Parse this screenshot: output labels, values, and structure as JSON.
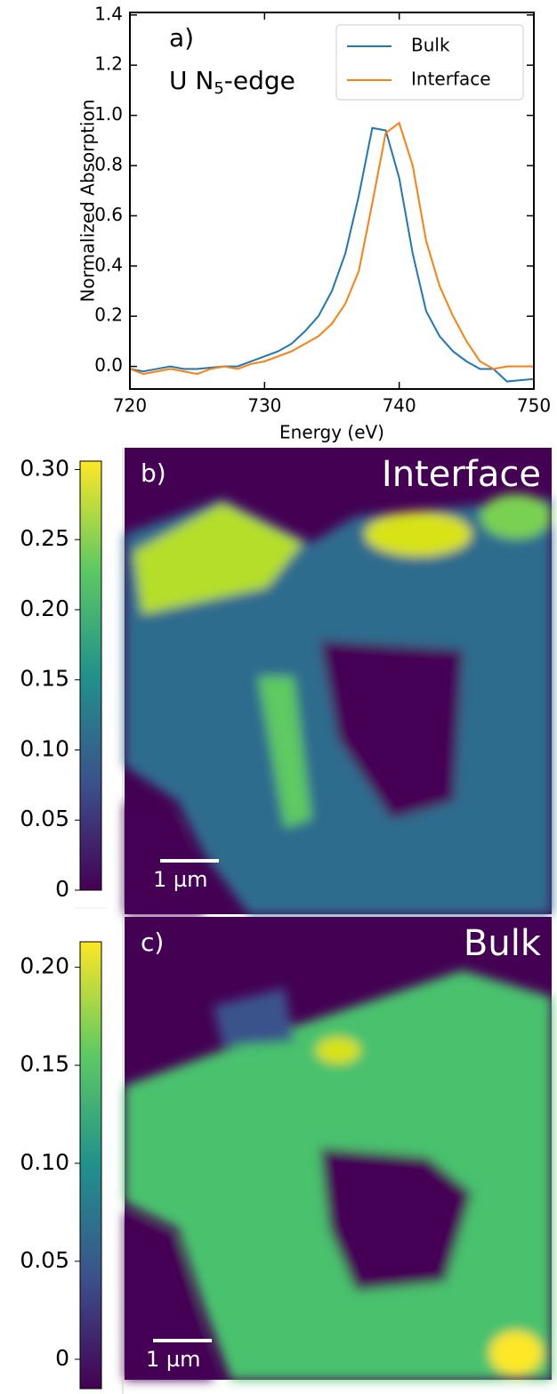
{
  "chart_data": [
    {
      "type": "line",
      "label": "a)",
      "annotation": {
        "main": "U N",
        "sub": "5",
        "rest": "-edge"
      },
      "x_label": "Energy (eV)",
      "y_label": "Normalized Absorption",
      "x": [
        720,
        721,
        722,
        723,
        724,
        725,
        726,
        727,
        728,
        729,
        730,
        731,
        732,
        733,
        734,
        735,
        736,
        737,
        738,
        739,
        740,
        741,
        742,
        743,
        744,
        745,
        746,
        747,
        748,
        749,
        750
      ],
      "series": [
        {
          "name": "Bulk",
          "color": "#1f77b4",
          "values": [
            -0.01,
            -0.02,
            -0.01,
            0.0,
            -0.01,
            -0.01,
            -0.005,
            0.0,
            0.0,
            0.02,
            0.04,
            0.06,
            0.09,
            0.14,
            0.2,
            0.3,
            0.45,
            0.68,
            0.95,
            0.94,
            0.75,
            0.45,
            0.22,
            0.12,
            0.06,
            0.02,
            -0.01,
            -0.01,
            -0.06,
            -0.055,
            -0.05
          ]
        },
        {
          "name": "Interface",
          "color": "#ff7f0e",
          "values": [
            -0.01,
            -0.03,
            -0.02,
            -0.01,
            -0.02,
            -0.03,
            -0.01,
            0.0,
            -0.01,
            0.01,
            0.02,
            0.04,
            0.06,
            0.09,
            0.12,
            0.17,
            0.25,
            0.38,
            0.65,
            0.93,
            0.97,
            0.8,
            0.5,
            0.32,
            0.2,
            0.1,
            0.02,
            -0.01,
            0.0,
            0.0,
            0.0
          ]
        }
      ],
      "xlim": [
        720,
        750
      ],
      "xticks": [
        720,
        730,
        740,
        750
      ],
      "ylim": [
        -0.09,
        1.41
      ],
      "yticks": [
        {
          "value": 0,
          "label": "0.0"
        },
        0.2,
        0.4,
        0.6,
        0.8,
        {
          "value": 1,
          "label": "1.0"
        },
        1.2,
        1.4
      ],
      "legend": "upper right"
    },
    {
      "type": "heatmap",
      "label": "b)",
      "title": "Interface",
      "scalebar": "1 µm",
      "colormap": "viridis",
      "clim": [
        0,
        0.306
      ],
      "cticks": [
        0,
        0.05,
        {
          "value": 0.1,
          "label": "0.10"
        },
        0.15,
        {
          "value": 0.2,
          "label": "0.20"
        },
        0.25,
        {
          "value": 0.3,
          "label": "0.30"
        }
      ]
    },
    {
      "type": "heatmap",
      "label": "c)",
      "title": "Bulk",
      "scalebar": "1 µm",
      "colormap": "viridis",
      "clim": [
        -0.015,
        0.213
      ],
      "cticks": [
        0,
        0.05,
        {
          "value": 0.1,
          "label": "0.10"
        },
        0.15,
        {
          "value": 0.2,
          "label": "0.20"
        }
      ]
    }
  ]
}
